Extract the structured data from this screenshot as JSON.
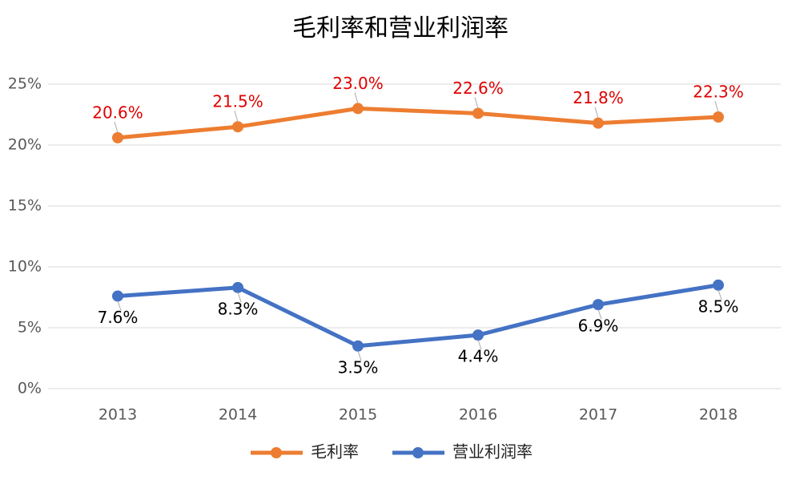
{
  "chart_data": {
    "type": "line",
    "title": "毛利率和营业利润率",
    "categories": [
      "2013",
      "2014",
      "2015",
      "2016",
      "2017",
      "2018"
    ],
    "series": [
      {
        "name": "毛利率",
        "color": "#ED7D31",
        "label_color": "#E00000",
        "values": [
          20.6,
          21.5,
          23.0,
          22.6,
          21.8,
          22.3
        ],
        "value_labels": [
          "20.6%",
          "21.5%",
          "23.0%",
          "22.6%",
          "21.8%",
          "22.3%"
        ]
      },
      {
        "name": "营业利润率",
        "color": "#4472C4",
        "label_color": "#000000",
        "values": [
          7.6,
          8.3,
          3.5,
          4.4,
          6.9,
          8.5
        ],
        "value_labels": [
          "7.6%",
          "8.3%",
          "3.5%",
          "4.4%",
          "6.9%",
          "8.5%"
        ]
      }
    ],
    "ylim": [
      0,
      25
    ],
    "yticks": [
      {
        "value": 0,
        "label": "0%"
      },
      {
        "value": 5,
        "label": "5%"
      },
      {
        "value": 10,
        "label": "10%"
      },
      {
        "value": 15,
        "label": "15%"
      },
      {
        "value": 20,
        "label": "20%"
      },
      {
        "value": 25,
        "label": "25%"
      }
    ],
    "grid": true
  }
}
